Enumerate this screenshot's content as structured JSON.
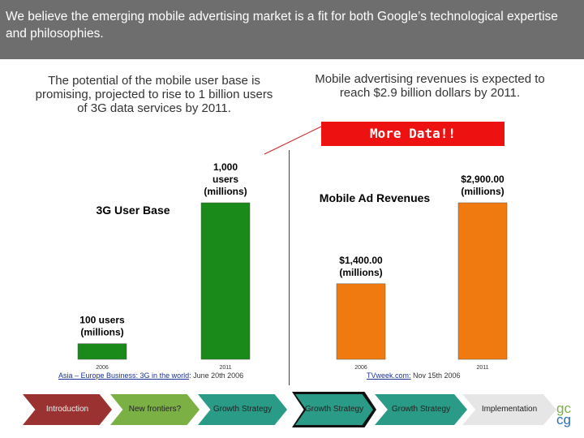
{
  "header": {
    "text": "We believe the emerging mobile advertising market is a fit for both Google’s technological expertise and philosophies."
  },
  "left_intro": "The potential of the mobile user base is promising, projected to rise to 1 billion users of 3G data services by 2011.",
  "right_intro": "Mobile advertising revenues is expected to reach $2.9 billion dollars by 2011.",
  "callout": {
    "label": "More Data!!",
    "color": "#ee1111"
  },
  "chart_data": [
    {
      "type": "bar",
      "title": "3G User Base",
      "categories": [
        "2006",
        "2011"
      ],
      "values": [
        100,
        1000
      ],
      "data_labels": [
        [
          "100 users",
          "(millions)"
        ],
        [
          "1,000",
          "users",
          "(millions)"
        ]
      ],
      "unit": "users (millions)",
      "ylim": [
        0,
        1000
      ],
      "bar_color": "#1a8a1a",
      "grid": false,
      "legend": "none",
      "source": {
        "link": "Asia – Europe Business: 3G in the world",
        "date": ": June 20th 2006"
      }
    },
    {
      "type": "bar",
      "title": "Mobile Ad Revenues",
      "categories": [
        "2006",
        "2011"
      ],
      "values": [
        1400,
        2900
      ],
      "data_labels": [
        [
          "$1,400.00",
          "(millions)"
        ],
        [
          "$2,900.00",
          "(millions)"
        ]
      ],
      "unit": "dollars (millions)",
      "ylim": [
        0,
        2900
      ],
      "bar_color": "#f07a10",
      "grid": false,
      "legend": "none",
      "source": {
        "link": "TVweek.com:",
        "date": " Nov 15th 2006"
      }
    }
  ],
  "nav": {
    "tabs": [
      {
        "label": "Introduction"
      },
      {
        "label": "New frontiers?"
      },
      {
        "label": "Growth Strategy"
      },
      {
        "label": "Growth Strategy",
        "active": true
      },
      {
        "label": "Growth Strategy"
      },
      {
        "label": "Implementation"
      }
    ]
  },
  "logo": {
    "line1": "gc",
    "line2": "cg"
  }
}
